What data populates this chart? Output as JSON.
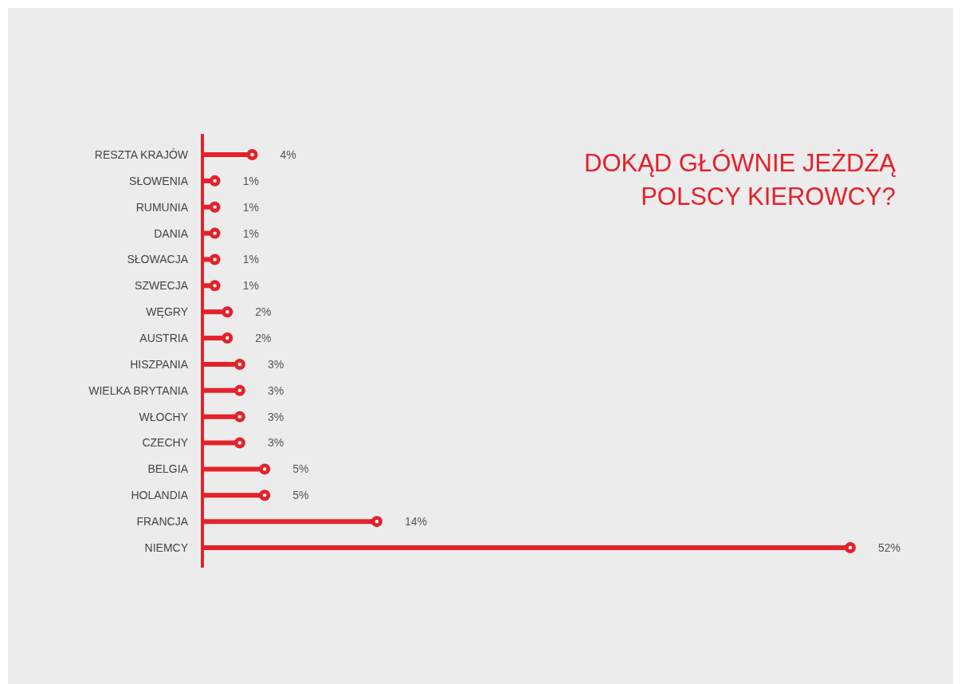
{
  "chart_data": {
    "type": "lollipop",
    "orientation": "horizontal",
    "title": "DOKĄD GŁÓWNIE JEŻDŻĄ POLSCY KIEROWCY?",
    "categories": [
      "RESZTA KRAJÓW",
      "SŁOWENIA",
      "RUMUNIA",
      "DANIA",
      "SŁOWACJA",
      "SZWECJA",
      "WĘGRY",
      "AUSTRIA",
      "HISZPANIA",
      "WIELKA BRYTANIA",
      "WŁOCHY",
      "CZECHY",
      "BELGIA",
      "HOLANDIA",
      "FRANCJA",
      "NIEMCY"
    ],
    "values": [
      4,
      1,
      1,
      1,
      1,
      1,
      2,
      2,
      3,
      3,
      3,
      3,
      5,
      5,
      14,
      52
    ],
    "value_labels": [
      "4%",
      "1%",
      "1%",
      "1%",
      "1%",
      "1%",
      "2%",
      "2%",
      "3%",
      "3%",
      "3%",
      "3%",
      "5%",
      "5%",
      "14%",
      "52%"
    ],
    "color": "#e3222b",
    "marker": "circle",
    "xlim": [
      0,
      52
    ]
  }
}
